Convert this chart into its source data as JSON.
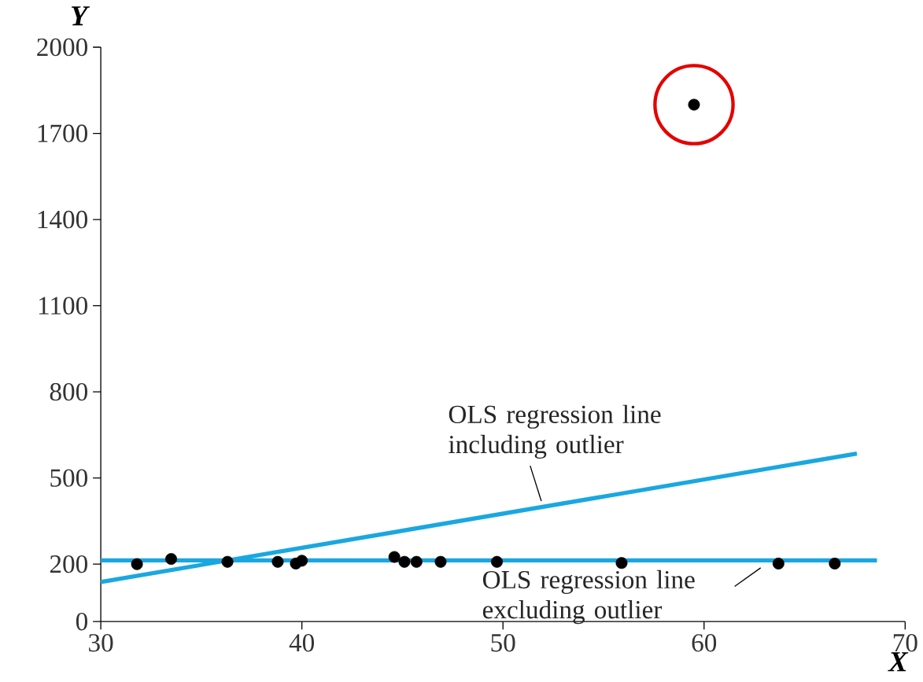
{
  "chart_data": {
    "type": "scatter",
    "xlabel": "X",
    "ylabel": "Y",
    "xlim": [
      30,
      70
    ],
    "xticks": [
      30,
      40,
      50,
      60,
      70
    ],
    "ylim": [
      0,
      2000
    ],
    "yticks": [
      0,
      200,
      500,
      800,
      1100,
      1400,
      1700,
      2000
    ],
    "grid": false,
    "series": [
      {
        "color": "#000000",
        "marker": "circle",
        "x": [
          31.8,
          33.5,
          36.3,
          38.8,
          39.7,
          40.0,
          44.6,
          45.1,
          45.7,
          46.9,
          49.7,
          55.9,
          59.5,
          63.7,
          66.5
        ],
        "values": [
          200,
          218,
          208,
          208,
          202,
          212,
          225,
          208,
          208,
          208,
          208,
          204,
          1800,
          202,
          202
        ]
      },
      {
        "type": "line",
        "color": "#1aa7e0",
        "x": [
          30,
          67.6
        ],
        "values": [
          138,
          585
        ]
      },
      {
        "type": "line",
        "color": "#1aa7e0",
        "x": [
          30,
          68.6
        ],
        "values": [
          213,
          213
        ]
      }
    ],
    "annotations": [
      {
        "text": "OLS regression line including outlier",
        "x": 52,
        "y": 400
      },
      {
        "text": "OLS regression line excluding outlier",
        "x": 63,
        "y": 213
      }
    ]
  }
}
